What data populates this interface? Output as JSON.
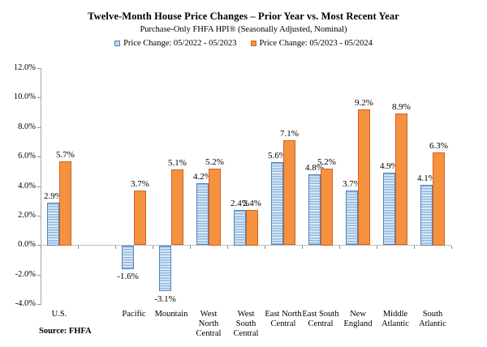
{
  "source_note": "Source: FHFA",
  "chart_data": {
    "type": "bar",
    "title": "Twelve-Month House Price Changes – Prior Year vs. Most Recent Year",
    "subtitle": "Purchase-Only FHFA HPI® (Seasonally Adjusted, Nominal)",
    "legend_position": "top",
    "grid": false,
    "categories": [
      "U.S.",
      "Pacific",
      "Mountain",
      "West North Central",
      "West South Central",
      "East North Central",
      "East South Central",
      "New England",
      "Middle Atlantic",
      "South Atlantic"
    ],
    "category_label_lines": [
      [
        "U.S."
      ],
      [
        "Pacific"
      ],
      [
        "Mountain"
      ],
      [
        "West",
        "North",
        "Central"
      ],
      [
        "West",
        "South",
        "Central"
      ],
      [
        "East North",
        "Central"
      ],
      [
        "East South",
        "Central"
      ],
      [
        "New",
        "England"
      ],
      [
        "Middle",
        "Atlantic"
      ],
      [
        "South",
        "Atlantic"
      ]
    ],
    "slots": [
      0,
      2,
      3,
      4,
      5,
      6,
      7,
      8,
      9,
      10
    ],
    "num_slots": 11,
    "series": [
      {
        "name": "Price Change:  05/2022 - 05/2023",
        "pattern": "horizontal-stripes",
        "fill": "#BDD7EE",
        "stripe": "#8FB8E2",
        "border": "#4F81BD",
        "values": [
          2.9,
          -1.6,
          -3.1,
          4.2,
          2.4,
          5.6,
          4.8,
          3.7,
          4.9,
          4.1
        ]
      },
      {
        "name": "Price Change:  05/2023 - 05/2024",
        "pattern": "solid",
        "fill": "#F6913D",
        "border": "#CE6228",
        "values": [
          5.7,
          3.7,
          5.1,
          5.2,
          2.4,
          7.1,
          5.2,
          9.2,
          8.9,
          6.3
        ]
      }
    ],
    "data_labels": [
      [
        "2.9%",
        "-1.6%",
        "-3.1%",
        "4.2%",
        "2.4%",
        "5.6%",
        "4.8%",
        "3.7%",
        "4.9%",
        "4.1%"
      ],
      [
        "5.7%",
        "3.7%",
        "5.1%",
        "5.2%",
        "2.4%",
        "7.1%",
        "5.2%",
        "9.2%",
        "8.9%",
        "6.3%"
      ]
    ],
    "ylim": [
      -4,
      12
    ],
    "ytick_step": 2,
    "ytick_labels": [
      "12.0%",
      "10.0%",
      "8.0%",
      "6.0%",
      "4.0%",
      "2.0%",
      "0.0%",
      "-2.0%",
      "-4.0%"
    ],
    "xlabel": "",
    "ylabel": ""
  }
}
